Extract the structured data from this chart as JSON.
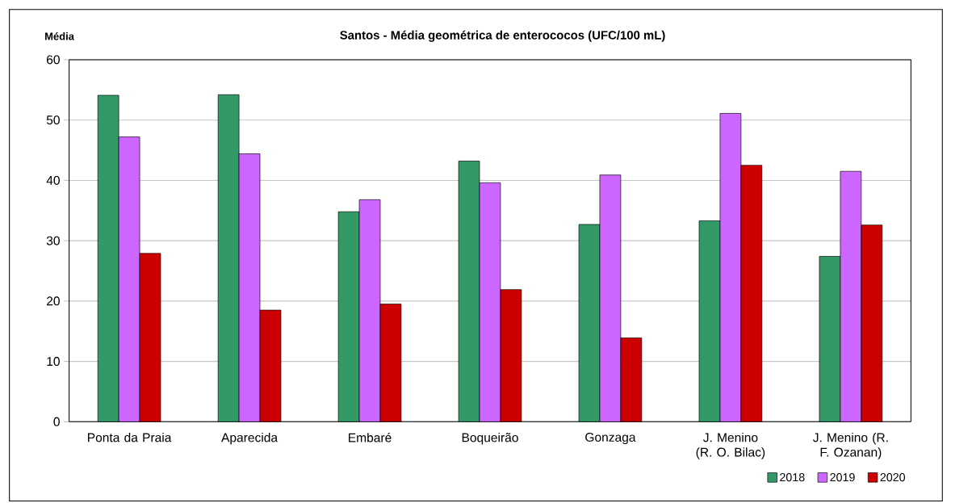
{
  "chart_data": {
    "type": "bar",
    "title": "Santos - Média geométrica de enterococos  (UFC/100 mL)",
    "ylabel": "Média",
    "categories": [
      "Ponta da Praia",
      "Aparecida",
      "Embaré",
      "Boqueirão",
      "Gonzaga",
      "J. Menino (R. O. Bilac)",
      "J. Menino (R. F. Ozanan)"
    ],
    "series": [
      {
        "name": "2018",
        "color": "#339966",
        "values": [
          54.1,
          54.2,
          34.8,
          43.2,
          32.7,
          33.3,
          27.4
        ]
      },
      {
        "name": "2019",
        "color": "#cc66ff",
        "values": [
          47.2,
          44.4,
          36.8,
          39.6,
          40.9,
          51.1,
          41.5
        ]
      },
      {
        "name": "2020",
        "color": "#cc0000",
        "values": [
          27.9,
          18.5,
          19.5,
          21.9,
          13.9,
          42.5,
          32.6
        ]
      }
    ],
    "ylim": [
      0,
      60
    ],
    "yticks": [
      0,
      10,
      20,
      30,
      40,
      50,
      60
    ],
    "grid": "y",
    "legend": "bottom right"
  }
}
